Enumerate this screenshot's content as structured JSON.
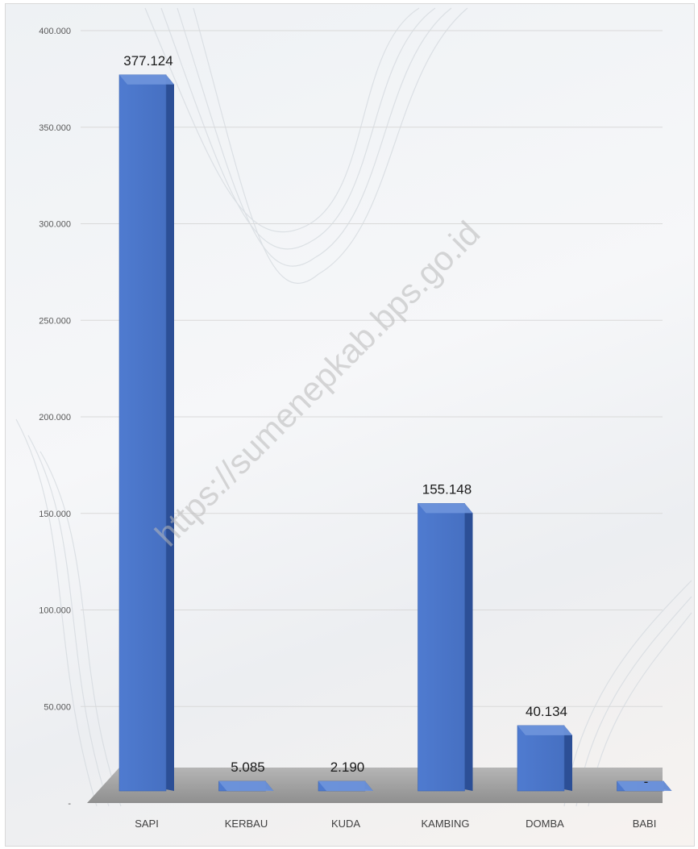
{
  "chart_data": {
    "type": "bar",
    "title": "",
    "xlabel": "",
    "ylabel": "",
    "categories": [
      "SAPI",
      "KERBAU",
      "KUDA",
      "KAMBING",
      "DOMBA",
      "BABI"
    ],
    "values": [
      377124,
      5085,
      2190,
      155148,
      40134,
      0
    ],
    "data_labels": [
      "377.124",
      "5.085",
      "2.190",
      "155.148",
      "40.134",
      "-"
    ],
    "yticks": [
      0,
      50000,
      100000,
      150000,
      200000,
      250000,
      300000,
      350000,
      400000
    ],
    "ytick_labels": [
      "-",
      "50.000",
      "100.000",
      "150.000",
      "200.000",
      "250.000",
      "300.000",
      "350.000",
      "400.000"
    ],
    "ylim": [
      0,
      400000
    ],
    "grid": true,
    "legend": "none",
    "style": "3d-column",
    "colors": {
      "bar_front": "#4a76c9",
      "bar_side": "#2c4f96",
      "bar_top": "#6f95dc",
      "floor": "#a6a6a6",
      "grid": "#d9d9d9"
    }
  },
  "watermark": "https://sumenepkab.bps.go.id"
}
